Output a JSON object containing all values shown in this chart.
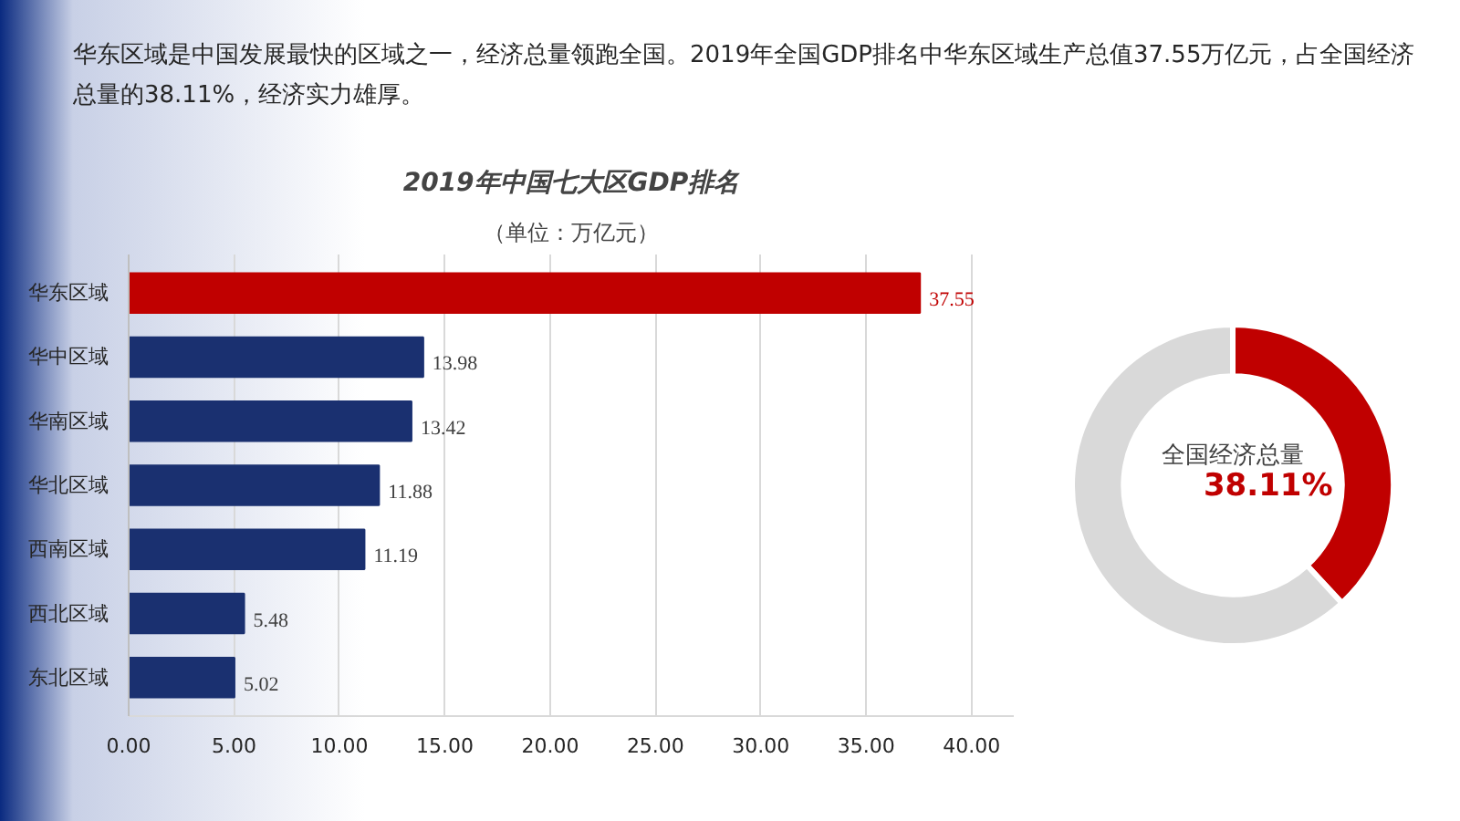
{
  "chart_data": [
    {
      "type": "bar",
      "orientation": "horizontal",
      "title": "2019年中国七大区GDP排名",
      "subtitle": "（单位：万亿元）",
      "annotations": [
        "华东区域是中国发展最快的区域之一，经济总量领跑全国。2019年全国GDP排名中华东区域生产总值37.55万亿元，占全国经济总量的38.11%，经济实力雄厚。"
      ],
      "categories": [
        "华东区域",
        "华中区域",
        "华南区域",
        "华北区域",
        "西南区域",
        "西北区域",
        "东北区域"
      ],
      "values": [
        37.55,
        13.98,
        13.42,
        11.88,
        11.19,
        5.48,
        5.02
      ],
      "colors": [
        "#c00000",
        "#1a3070",
        "#1a3070",
        "#1a3070",
        "#1a3070",
        "#1a3070",
        "#1a3070"
      ],
      "xlim": [
        0,
        42
      ],
      "xticks": [
        {
          "value": 0,
          "label": "0.00"
        },
        {
          "value": 5,
          "label": "5.00"
        },
        {
          "value": 10,
          "label": "10.00"
        },
        {
          "value": 15,
          "label": "15.00"
        },
        {
          "value": 20,
          "label": "20.00"
        },
        {
          "value": 25,
          "label": "25.00"
        },
        {
          "value": 30,
          "label": "30.00"
        },
        {
          "value": 35,
          "label": "35.00"
        },
        {
          "value": 40,
          "label": "40.00"
        }
      ],
      "grid": "x",
      "data_labels": true
    },
    {
      "type": "donut",
      "title": "全国经济总量",
      "categories": [
        null,
        null
      ],
      "values": [
        38.11,
        61.89
      ],
      "colors": [
        "#c00000",
        "#d9d9d9"
      ],
      "value_labels": [
        "38.11%",
        null
      ]
    }
  ]
}
